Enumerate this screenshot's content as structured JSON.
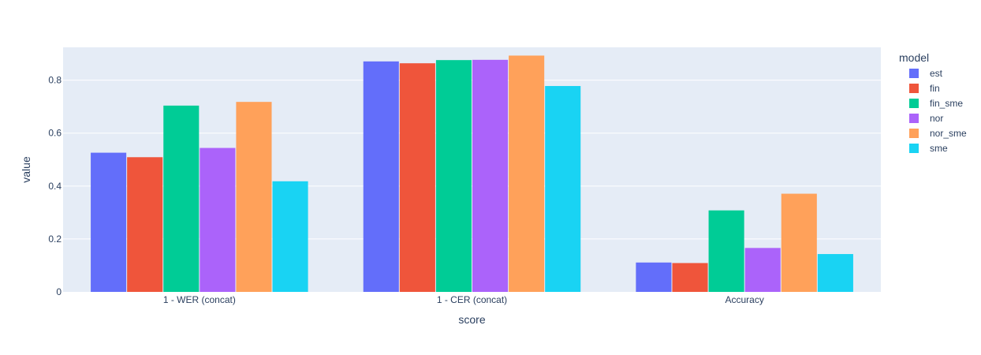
{
  "chart_data": {
    "type": "bar",
    "barmode": "group",
    "categories": [
      "1 - WER (concat)",
      "1 - CER (concat)",
      "Accuracy"
    ],
    "series": [
      {
        "name": "est",
        "color": "#636efa",
        "values": [
          0.526,
          0.871,
          0.111
        ]
      },
      {
        "name": "fin",
        "color": "#ef553b",
        "values": [
          0.509,
          0.864,
          0.109
        ]
      },
      {
        "name": "fin_sme",
        "color": "#00cc96",
        "values": [
          0.704,
          0.876,
          0.308
        ]
      },
      {
        "name": "nor",
        "color": "#ab63fa",
        "values": [
          0.544,
          0.877,
          0.166
        ]
      },
      {
        "name": "nor_sme",
        "color": "#ffa15a",
        "values": [
          0.718,
          0.893,
          0.371
        ]
      },
      {
        "name": "sme",
        "color": "#19d3f3",
        "values": [
          0.418,
          0.778,
          0.143
        ]
      }
    ],
    "xlabel": "score",
    "ylabel": "value",
    "ylim": [
      0,
      0.9242
    ],
    "yticks": [
      0,
      0.2,
      0.4,
      0.6,
      0.8
    ],
    "ytick_labels": [
      "0",
      "0.2",
      "0.4",
      "0.6",
      "0.8"
    ],
    "grid": true,
    "legend_title": "model",
    "legend_position": "right",
    "plot_bgcolor": "#e5ecf6"
  }
}
